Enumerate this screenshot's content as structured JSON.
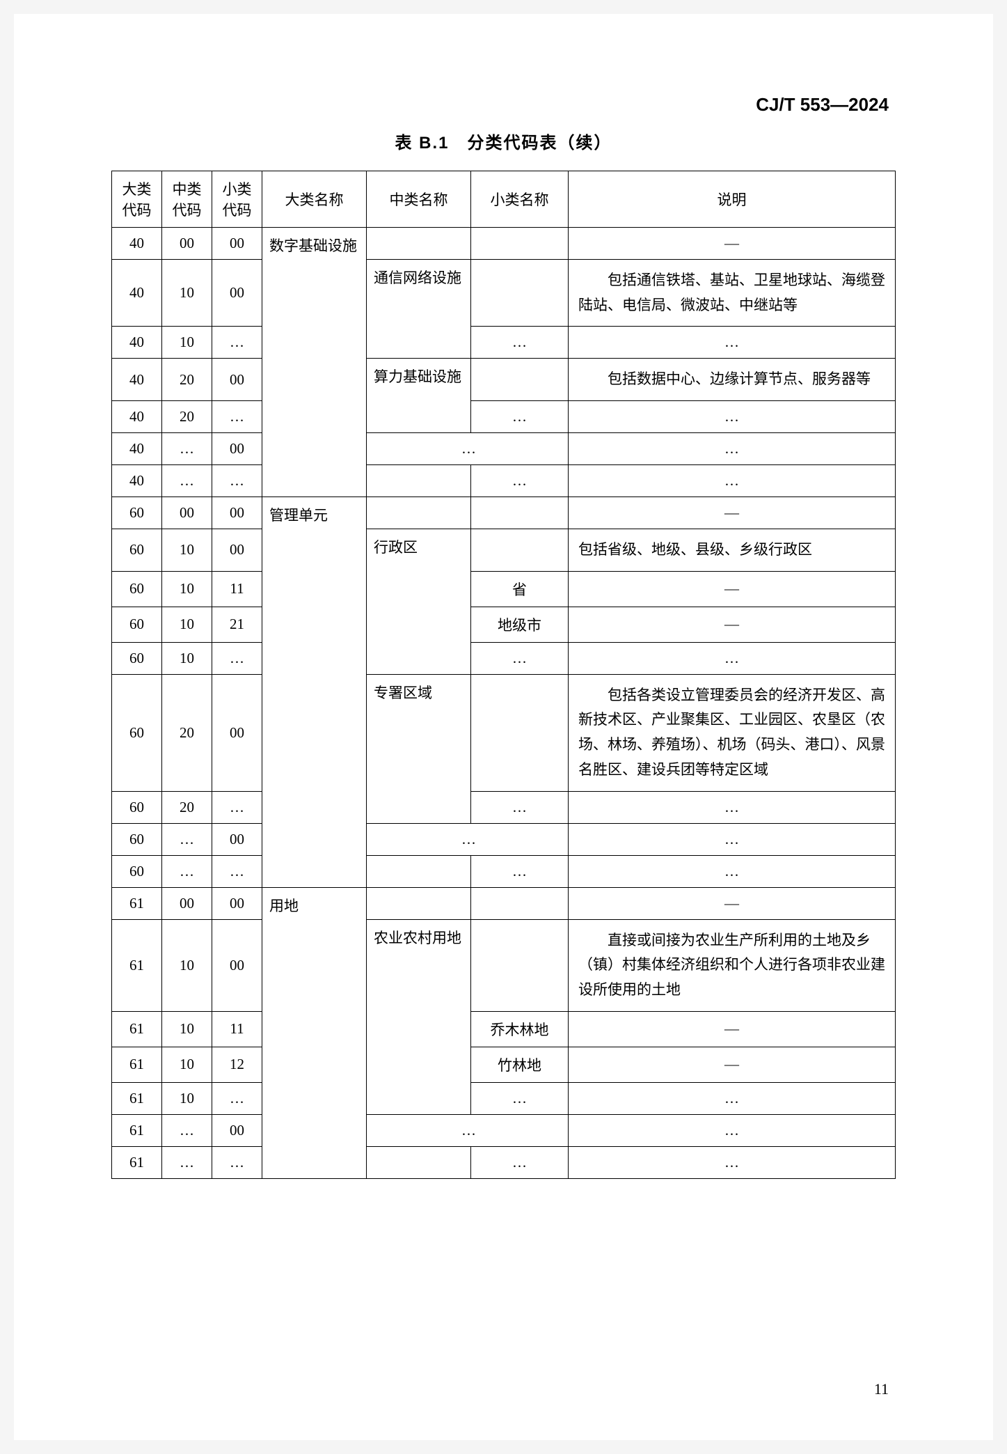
{
  "doc_id": "CJ/T 553—2024",
  "table_title": "表 B.1　分类代码表（续）",
  "page_number": "11",
  "headers": {
    "col1": "大类\n代码",
    "col2": "中类\n代码",
    "col3": "小类\n代码",
    "col4": "大类名称",
    "col5": "中类名称",
    "col6": "小类名称",
    "col7": "说明"
  },
  "ellipsis": "…",
  "dash": "—",
  "rows": {
    "r1": {
      "a": "40",
      "b": "00",
      "c": "00",
      "l": "数字基础设施",
      "m": "",
      "s": "",
      "d": "—"
    },
    "r2": {
      "a": "40",
      "b": "10",
      "c": "00",
      "m": "通信网络设施",
      "s": "",
      "d": "　　包括通信铁塔、基站、卫星地球站、海缆登陆站、电信局、微波站、中继站等"
    },
    "r3": {
      "a": "40",
      "b": "10",
      "c": "…",
      "s": "…",
      "d": "…"
    },
    "r4": {
      "a": "40",
      "b": "20",
      "c": "00",
      "m": "算力基础设施",
      "s": "",
      "d": "　　包括数据中心、边缘计算节点、服务器等"
    },
    "r5": {
      "a": "40",
      "b": "20",
      "c": "…",
      "s": "…",
      "d": "…"
    },
    "r6": {
      "a": "40",
      "b": "…",
      "c": "00",
      "m": "…",
      "d": "…"
    },
    "r7": {
      "a": "40",
      "b": "…",
      "c": "…",
      "s": "…",
      "d": "…"
    },
    "r8": {
      "a": "60",
      "b": "00",
      "c": "00",
      "l": "管理单元",
      "d": "—"
    },
    "r9": {
      "a": "60",
      "b": "10",
      "c": "00",
      "m": "行政区",
      "d": "包括省级、地级、县级、乡级行政区"
    },
    "r10": {
      "a": "60",
      "b": "10",
      "c": "11",
      "s": "省",
      "d": "—"
    },
    "r11": {
      "a": "60",
      "b": "10",
      "c": "21",
      "s": "地级市",
      "d": "—"
    },
    "r12": {
      "a": "60",
      "b": "10",
      "c": "…",
      "s": "…",
      "d": "…"
    },
    "r13": {
      "a": "60",
      "b": "20",
      "c": "00",
      "m": "专署区域",
      "d": "　　包括各类设立管理委员会的经济开发区、高新技术区、产业聚集区、工业园区、农垦区（农场、林场、养殖场）、机场（码头、港口）、风景名胜区、建设兵团等特定区域"
    },
    "r14": {
      "a": "60",
      "b": "20",
      "c": "…",
      "s": "…",
      "d": "…"
    },
    "r15": {
      "a": "60",
      "b": "…",
      "c": "00",
      "m": "…",
      "d": "…"
    },
    "r16": {
      "a": "60",
      "b": "…",
      "c": "…",
      "s": "…",
      "d": "…"
    },
    "r17": {
      "a": "61",
      "b": "00",
      "c": "00",
      "l": "用地",
      "d": "—"
    },
    "r18": {
      "a": "61",
      "b": "10",
      "c": "00",
      "m": "农业农村用地",
      "d": "　　直接或间接为农业生产所利用的土地及乡（镇）村集体经济组织和个人进行各项非农业建设所使用的土地"
    },
    "r19": {
      "a": "61",
      "b": "10",
      "c": "11",
      "s": "乔木林地",
      "d": "—"
    },
    "r20": {
      "a": "61",
      "b": "10",
      "c": "12",
      "s": "竹林地",
      "d": "—"
    },
    "r21": {
      "a": "61",
      "b": "10",
      "c": "…",
      "s": "…",
      "d": "…"
    },
    "r22": {
      "a": "61",
      "b": "…",
      "c": "00",
      "m": "…",
      "d": "…"
    },
    "r23": {
      "a": "61",
      "b": "…",
      "c": "…",
      "s": "…",
      "d": "…"
    }
  }
}
